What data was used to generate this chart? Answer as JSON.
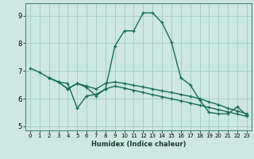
{
  "xlabel": "Humidex (Indice chaleur)",
  "bg_color": "#cce8e0",
  "grid_color": "#a8cec8",
  "line_color": "#1a6b5a",
  "xlim": [
    -0.5,
    23.5
  ],
  "ylim": [
    4.85,
    9.45
  ],
  "xticks": [
    0,
    1,
    2,
    3,
    4,
    5,
    6,
    7,
    8,
    9,
    10,
    11,
    12,
    13,
    14,
    15,
    16,
    17,
    18,
    19,
    20,
    21,
    22,
    23
  ],
  "yticks": [
    5,
    6,
    7,
    8,
    9
  ],
  "line1_x": [
    0,
    1,
    2,
    3,
    4,
    5,
    6,
    7,
    8,
    9,
    10,
    11,
    12,
    13,
    14,
    15,
    16,
    17,
    18,
    19,
    20,
    21,
    22,
    23
  ],
  "line1_y": [
    7.1,
    6.95,
    6.75,
    6.6,
    6.55,
    5.65,
    6.1,
    6.15,
    6.35,
    7.9,
    8.45,
    8.45,
    9.1,
    9.1,
    8.75,
    8.05,
    6.75,
    6.5,
    5.95,
    5.5,
    5.45,
    5.45,
    5.7,
    5.4
  ],
  "line2_x": [
    2,
    3,
    4,
    5,
    6,
    7,
    8,
    9,
    10,
    11,
    12,
    13,
    14,
    15,
    16,
    17,
    18,
    19,
    20,
    21,
    22,
    23
  ],
  "line2_y": [
    6.75,
    6.6,
    6.35,
    6.55,
    6.45,
    6.35,
    6.55,
    6.6,
    6.55,
    6.48,
    6.42,
    6.35,
    6.28,
    6.22,
    6.15,
    6.08,
    6.0,
    5.88,
    5.78,
    5.65,
    5.55,
    5.45
  ],
  "line3_x": [
    2,
    3,
    4,
    5,
    6,
    7,
    8,
    9,
    10,
    11,
    12,
    13,
    14,
    15,
    16,
    17,
    18,
    19,
    20,
    21,
    22,
    23
  ],
  "line3_y": [
    6.75,
    6.6,
    6.35,
    6.55,
    6.4,
    6.1,
    6.35,
    6.45,
    6.38,
    6.3,
    6.22,
    6.14,
    6.07,
    5.99,
    5.92,
    5.84,
    5.76,
    5.68,
    5.6,
    5.52,
    5.44,
    5.36
  ]
}
